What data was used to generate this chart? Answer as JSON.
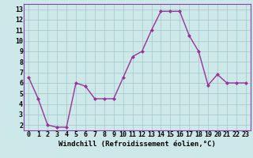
{
  "x": [
    0,
    1,
    2,
    3,
    4,
    5,
    6,
    7,
    8,
    9,
    10,
    11,
    12,
    13,
    14,
    15,
    16,
    17,
    18,
    19,
    20,
    21,
    22,
    23
  ],
  "y": [
    6.5,
    4.5,
    2.0,
    1.8,
    1.8,
    6.0,
    5.7,
    4.5,
    4.5,
    4.5,
    6.5,
    8.5,
    9.0,
    11.0,
    12.8,
    12.8,
    12.8,
    10.5,
    9.0,
    5.8,
    6.8,
    6.0,
    6.0,
    6.0
  ],
  "line_color": "#993399",
  "marker": "D",
  "marker_size": 2.0,
  "line_width": 1.0,
  "xlabel": "Windchill (Refroidissement éolien,°C)",
  "xlabel_fontsize": 6.5,
  "ylim": [
    1.5,
    13.5
  ],
  "xlim": [
    -0.5,
    23.5
  ],
  "yticks": [
    2,
    3,
    4,
    5,
    6,
    7,
    8,
    9,
    10,
    11,
    12,
    13
  ],
  "xticks": [
    0,
    1,
    2,
    3,
    4,
    5,
    6,
    7,
    8,
    9,
    10,
    11,
    12,
    13,
    14,
    15,
    16,
    17,
    18,
    19,
    20,
    21,
    22,
    23
  ],
  "grid_color": "#aacccc",
  "bg_color": "#cce8e8",
  "tick_fontsize": 6.0,
  "spine_color": "#8844aa"
}
